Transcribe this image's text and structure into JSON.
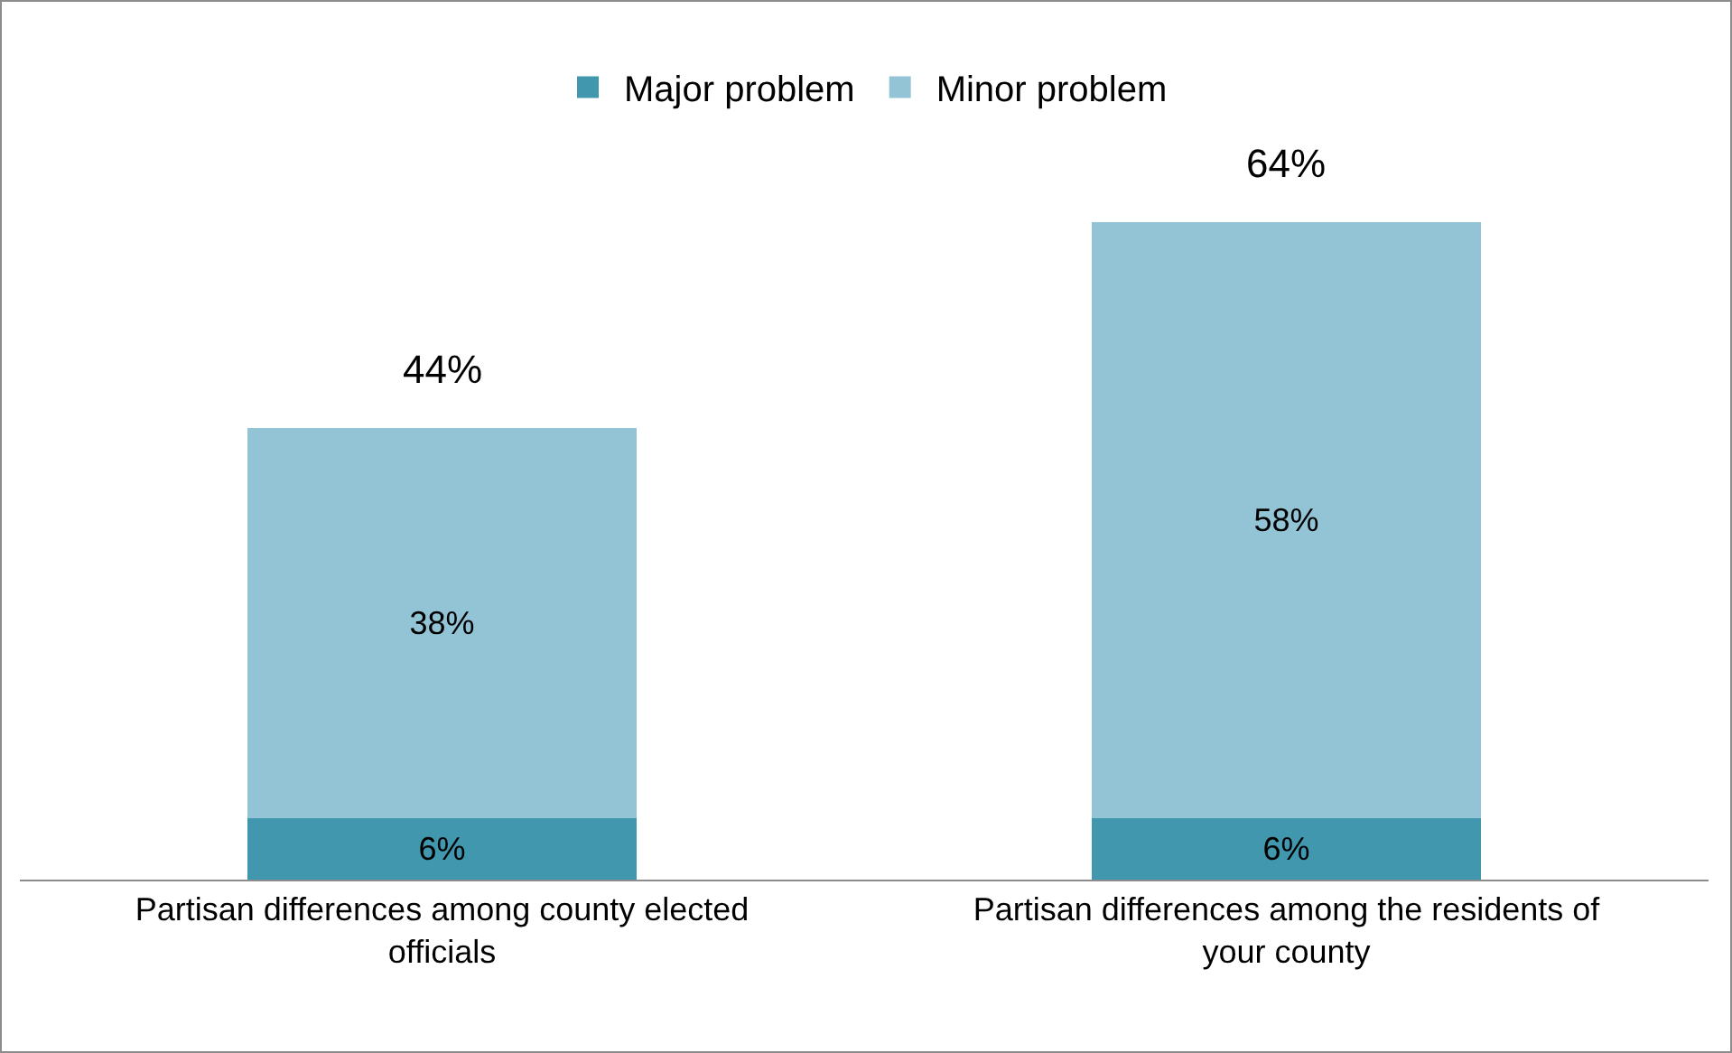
{
  "chart_data": {
    "type": "bar",
    "stacked": true,
    "categories": [
      "Partisan differences among county elected officials",
      "Partisan differences among the residents of your county"
    ],
    "series": [
      {
        "name": "Major problem",
        "color": "#4197ad",
        "values": [
          6,
          6
        ],
        "value_labels": [
          "6%",
          "6%"
        ]
      },
      {
        "name": "Minor problem",
        "color": "#93c4d5",
        "values": [
          38,
          58
        ],
        "value_labels": [
          "38%",
          "58%"
        ]
      }
    ],
    "totals": [
      "44%",
      "64%"
    ],
    "legend": "top",
    "grid": false,
    "tick_labels": "x"
  }
}
